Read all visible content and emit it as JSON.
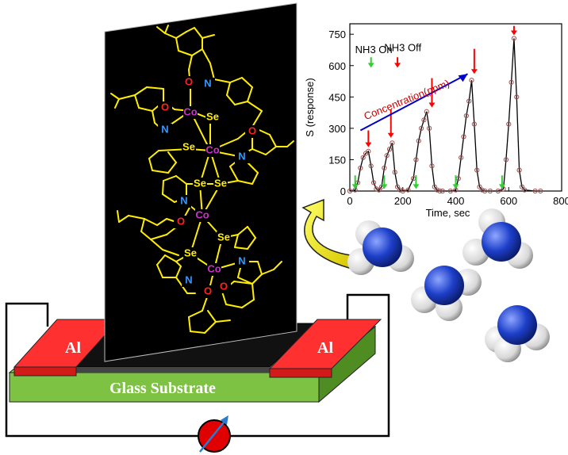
{
  "device": {
    "electrode_left": "Al",
    "electrode_right": "Al",
    "substrate_label": "Glass Substrate",
    "colors": {
      "electrode": "#ff2a2a",
      "substrate_top": "#7dc242",
      "substrate_side": "#5a9a2c",
      "film": "#111111",
      "wire": "#000000",
      "meter": "#e00000"
    }
  },
  "molecule": {
    "colors": {
      "panel": "#000000",
      "bond": "#ffee00",
      "co": "#cc33cc",
      "se": "#ffee00",
      "n": "#3399ff",
      "o": "#ff2222"
    },
    "atoms": {
      "co": "Co",
      "se": "Se",
      "n": "N",
      "o": "O"
    }
  },
  "chart_data": {
    "type": "line",
    "xlabel": "Time, sec",
    "ylabel": "S (response)",
    "xlim": [
      0,
      800
    ],
    "ylim": [
      0,
      800
    ],
    "xticks": [
      "0",
      "200",
      "400",
      "600",
      "800"
    ],
    "yticks": [
      "0",
      "150",
      "300",
      "450",
      "600",
      "750"
    ],
    "annotations": {
      "nh3_on": "NH3 On",
      "nh3_off": "NH3 Off",
      "concentration": "Concentration(ppm)"
    },
    "series": [
      {
        "x": [
          0,
          20,
          30,
          40,
          50,
          60,
          70,
          80,
          90,
          100,
          110,
          120,
          130,
          140,
          150,
          160,
          170,
          180,
          190,
          200,
          220,
          240,
          250,
          260,
          270,
          280,
          290,
          300,
          310,
          320,
          330,
          340,
          350,
          380,
          400,
          410,
          420,
          430,
          440,
          450,
          460,
          470,
          480,
          490,
          500,
          510,
          530,
          560,
          580,
          590,
          600,
          610,
          620,
          630,
          640,
          650,
          660,
          700,
          720
        ],
        "y": [
          0,
          5,
          40,
          110,
          160,
          180,
          190,
          120,
          40,
          10,
          5,
          20,
          110,
          170,
          200,
          230,
          90,
          20,
          5,
          0,
          5,
          60,
          150,
          240,
          300,
          340,
          380,
          300,
          120,
          20,
          5,
          0,
          0,
          0,
          5,
          60,
          160,
          260,
          360,
          430,
          530,
          320,
          100,
          20,
          5,
          0,
          0,
          0,
          10,
          150,
          320,
          520,
          730,
          450,
          100,
          20,
          5,
          0,
          0
        ]
      }
    ],
    "on_markers_x": [
      20,
      130,
      250,
      400,
      575
    ],
    "off_markers_x": [
      70,
      155,
      310,
      470,
      620
    ],
    "colors": {
      "line": "#000000",
      "marker": "#a05050",
      "on_arrow": "#33cc33",
      "off_arrow": "#ff0000",
      "conc_arrow": "#0000cc",
      "conc_text": "#cc0000"
    }
  }
}
